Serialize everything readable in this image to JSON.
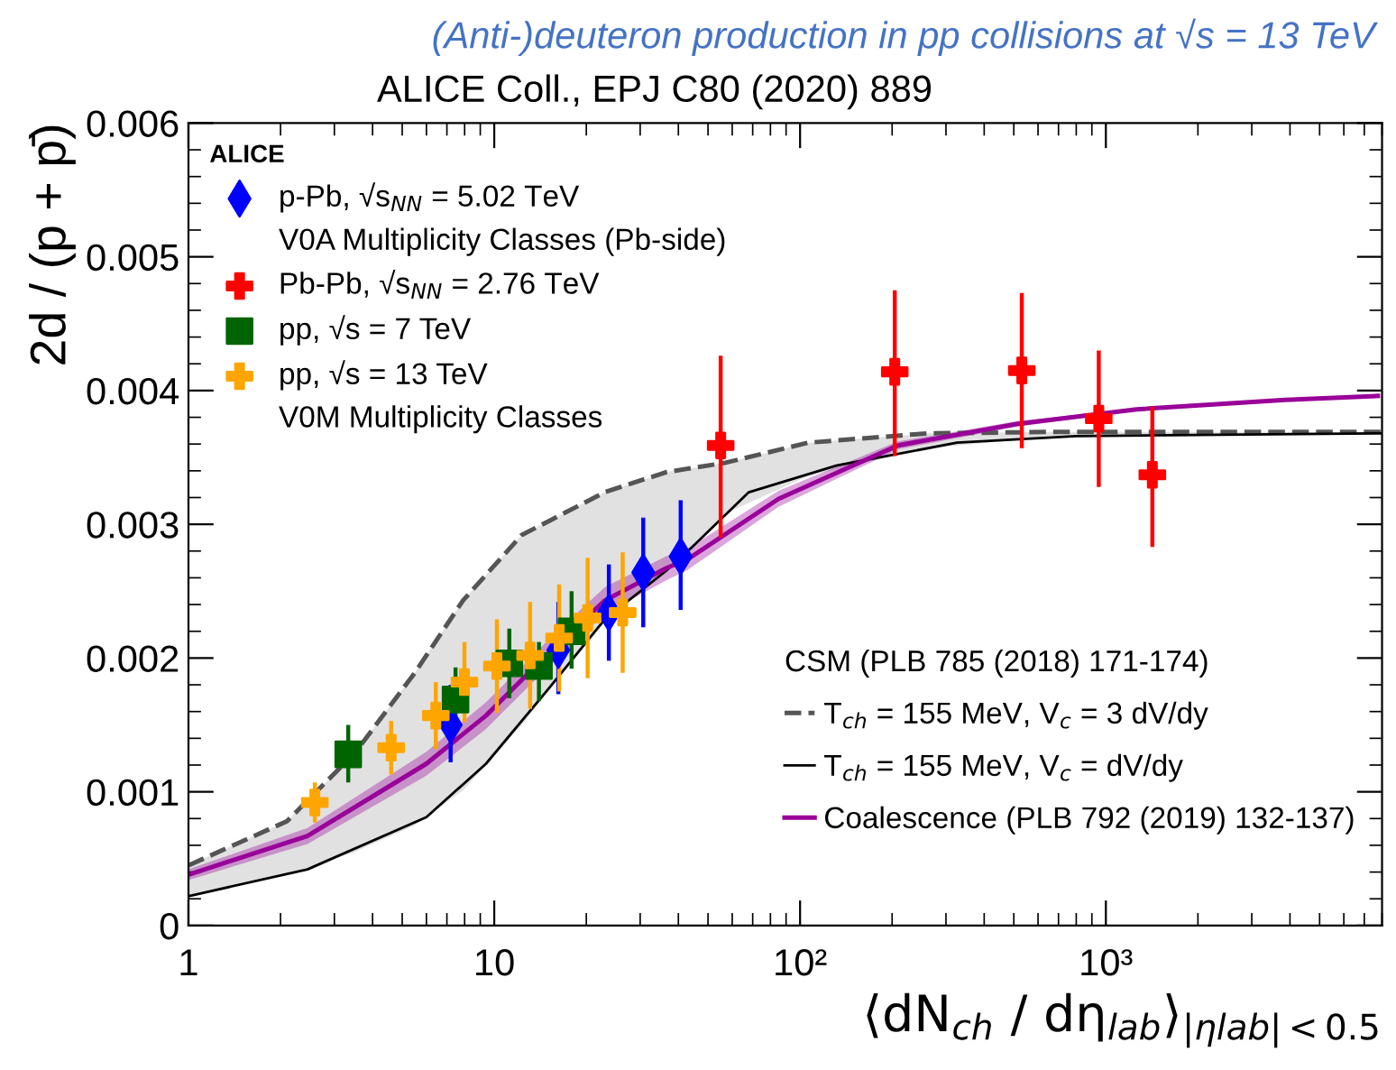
{
  "chart_data": {
    "type": "scatter",
    "title": "(Anti-)deuteron production in pp collisions at √s = 13 TeV",
    "subtitle": "ALICE Coll., EPJ C80 (2020) 889",
    "xlabel": "⟨dN$_{ch}$ / dη$_{lab}$⟩$_{|ηlab|<0.5}$",
    "ylabel": "2d / (p + p̄)",
    "legend_title": "ALICE",
    "annotations": [
      "V0A Multiplicity Classes (Pb-side)",
      "V0M Multiplicity Classes",
      "CSM (PLB 785 (2018) 171-174)"
    ],
    "log": "x",
    "legend": "top left",
    "xlim": [
      1,
      8000
    ],
    "xticks": [
      {
        "value": 1,
        "label": "1"
      },
      {
        "value": 10,
        "label": "10"
      },
      {
        "value": 100,
        "label": "10²"
      },
      {
        "value": 1000,
        "label": "10³"
      }
    ],
    "ylim": [
      0,
      0.006
    ],
    "yticks": [
      0,
      0.001,
      0.002,
      0.003,
      0.004,
      0.005,
      0.006
    ],
    "series": [
      {
        "type": "line",
        "name": "T$_{ch}$ = 155 MeV, V$_{c}$ = 3 dV/dy",
        "color": "#555555",
        "line_style": "dashed",
        "marker": "none",
        "x": [
          1,
          2.1,
          3.5,
          5.5,
          7.9,
          12.3,
          23,
          36.5,
          57,
          106,
          261,
          643,
          8000
        ],
        "values": [
          0.00045,
          0.00078,
          0.00129,
          0.00189,
          0.00243,
          0.00292,
          0.00324,
          0.00339,
          0.00346,
          0.00361,
          0.00368,
          0.00369,
          0.00369
        ],
        "lower": [
          0.00022,
          0.00038,
          0.00055,
          0.00075,
          0.00101,
          0.0015,
          0.00229,
          0.00265,
          0.00308,
          0.00336,
          0.00357,
          0.00365,
          0.00368
        ],
        "upper": [
          0.00045,
          0.00078,
          0.00129,
          0.00189,
          0.00243,
          0.00292,
          0.00324,
          0.00339,
          0.00346,
          0.00361,
          0.00368,
          0.00369,
          0.00369
        ]
      },
      {
        "type": "line",
        "name": "T$_{ch}$ = 155 MeV, V$_{c}$ = dV/dy",
        "color": "#000000",
        "line_style": "solid",
        "marker": "none",
        "x": [
          1,
          2.45,
          6.0,
          9.4,
          14.8,
          23,
          36.4,
          43,
          68,
          132,
          326,
          800,
          8000
        ],
        "values": [
          0.00022,
          0.00042,
          0.00081,
          0.00121,
          0.00175,
          0.00229,
          0.00265,
          0.0028,
          0.00324,
          0.00344,
          0.00361,
          0.00366,
          0.00368
        ]
      },
      {
        "type": "line",
        "name": "Coalescence (PLB 792 (2019) 132-137)",
        "color": "#990099",
        "line_style": "solid",
        "marker": "none",
        "x": [
          1,
          2.45,
          6.0,
          9.4,
          14.8,
          23,
          36.4,
          43,
          85,
          209,
          510,
          1260,
          3860,
          7750
        ],
        "values": [
          0.00038,
          0.00067,
          0.00121,
          0.00157,
          0.00202,
          0.00243,
          0.00267,
          0.00274,
          0.00319,
          0.00359,
          0.00375,
          0.00386,
          0.00393,
          0.00396
        ],
        "lower": [
          0.00034,
          0.00061,
          0.00112,
          0.00147,
          0.00192,
          0.00233,
          0.00258,
          0.00266,
          0.00313,
          0.00356,
          0.00373,
          0.00385,
          0.00392,
          0.00395
        ],
        "upper": [
          0.00042,
          0.00073,
          0.0013,
          0.00167,
          0.00212,
          0.00253,
          0.00276,
          0.00282,
          0.00325,
          0.00362,
          0.00377,
          0.00387,
          0.00394,
          0.00397
        ]
      },
      {
        "name": "p-Pb, √s$_{NN}$ = 5.02 TeV",
        "color": "#0000ff",
        "marker": "diamond",
        "x": [
          7.2,
          16.2,
          23.7,
          30.7,
          40.7
        ],
        "values": [
          0.0015,
          0.00206,
          0.00234,
          0.00264,
          0.00276
        ],
        "errors": [
          [
            0.00122,
            0.0018
          ],
          [
            0.00173,
            0.00242
          ],
          [
            0.00198,
            0.0027
          ],
          [
            0.00223,
            0.00305
          ],
          [
            0.00236,
            0.00318
          ]
        ]
      },
      {
        "name": "Pb-Pb, √s$_{NN}$ = 2.76 TeV",
        "color": "#ff0000",
        "marker": "cross",
        "x": [
          55,
          204,
          531,
          948,
          1419
        ],
        "values": [
          0.00359,
          0.00414,
          0.00415,
          0.00379,
          0.00337
        ],
        "errors": [
          [
            0.0029,
            0.00426
          ],
          [
            0.00351,
            0.00475
          ],
          [
            0.00357,
            0.00473
          ],
          [
            0.00328,
            0.0043
          ],
          [
            0.00283,
            0.00388
          ]
        ]
      },
      {
        "name": "pp, √s = 7 TeV",
        "color": "#006400",
        "marker": "square",
        "x": [
          3.33,
          7.47,
          11.2,
          14.0,
          17.9
        ],
        "values": [
          0.00128,
          0.00169,
          0.00196,
          0.00194,
          0.0022
        ],
        "errors": [
          [
            0.00107,
            0.0015
          ],
          [
            0.00148,
            0.00193
          ],
          [
            0.0017,
            0.00222
          ],
          [
            0.00168,
            0.00212
          ],
          [
            0.00192,
            0.0025
          ]
        ]
      },
      {
        "name": "pp, √s = 13 TeV",
        "color": "#ffa500",
        "marker": "cross",
        "x": [
          2.59,
          4.6,
          6.44,
          7.99,
          10.2,
          13.1,
          16.3,
          20.2,
          26.3
        ],
        "values": [
          0.00092,
          0.00133,
          0.00157,
          0.00182,
          0.00194,
          0.00202,
          0.00215,
          0.0023,
          0.00234
        ],
        "errors": [
          0.00015,
          0.0002,
          0.00025,
          0.0003,
          0.00035,
          0.0004,
          0.0004,
          0.00045,
          0.00045
        ]
      }
    ]
  }
}
